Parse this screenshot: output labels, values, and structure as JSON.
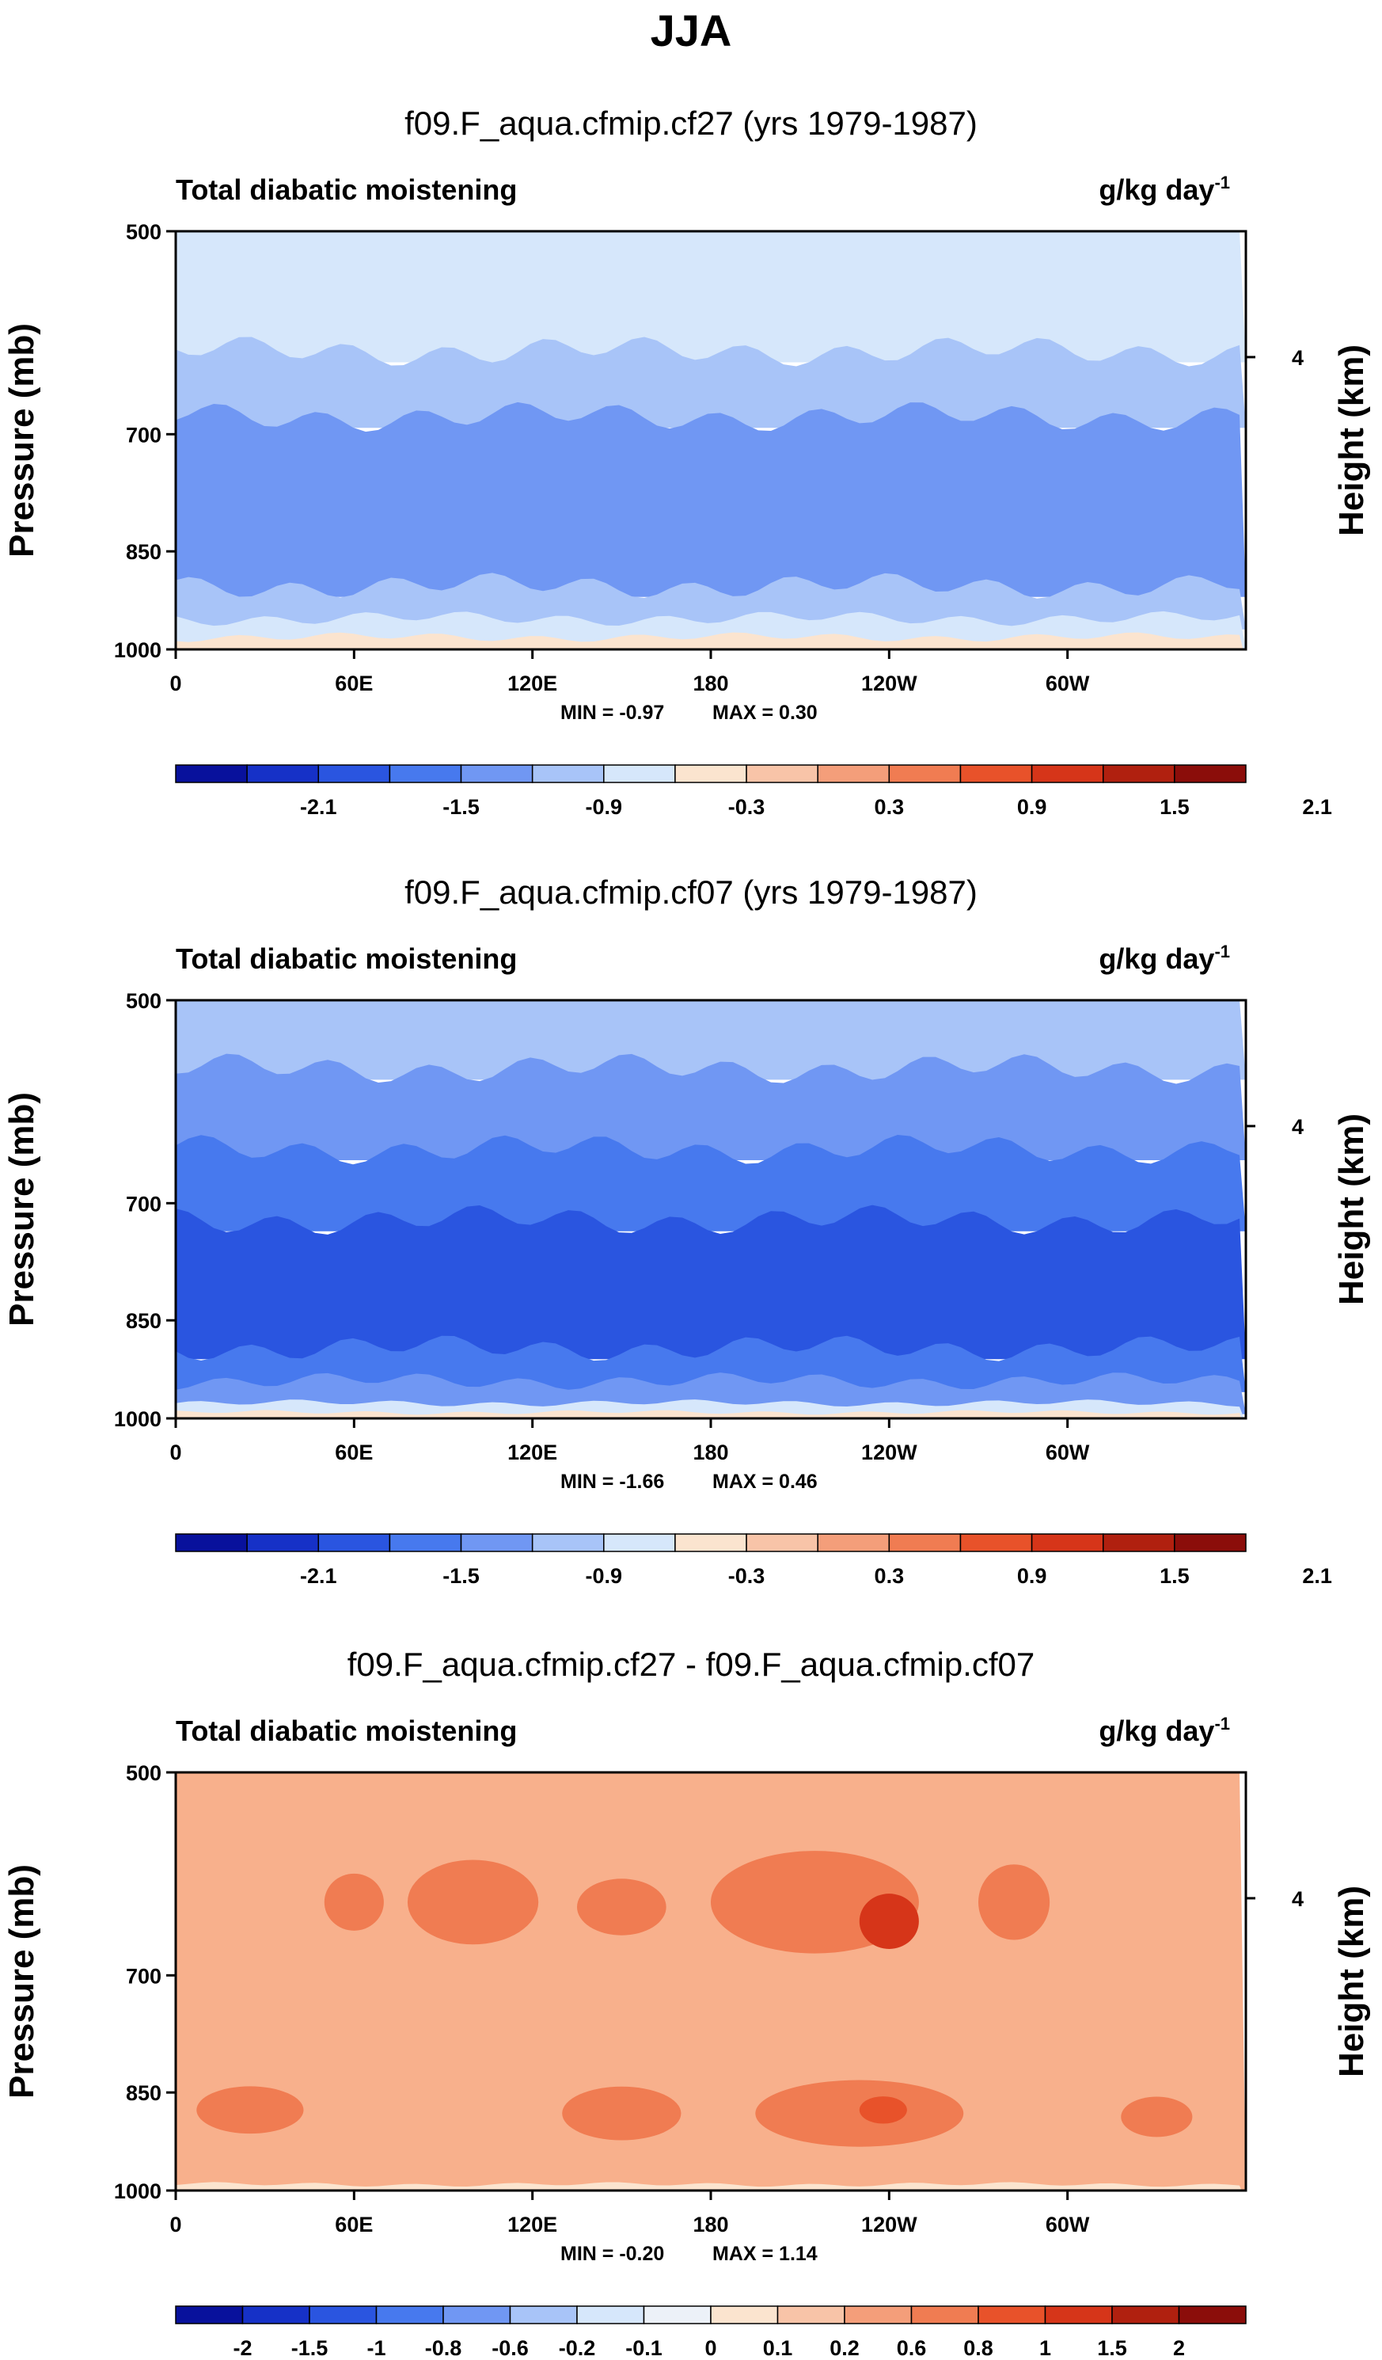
{
  "figure": {
    "title": "JJA"
  },
  "chart_data": [
    {
      "type": "contour",
      "title": "f09.F_aqua.cfmip.cf27 (yrs 1979-1987)",
      "left_string": "Total diabatic moistening",
      "units_base": "g/kg day",
      "units_exp": "-1",
      "ylabel": "Pressure (mb)",
      "ylabel_right": "Height (km)",
      "yticks": [
        "500",
        "700",
        "850",
        "1000"
      ],
      "yticks_right": [
        "4"
      ],
      "xticks": [
        "0",
        "60E",
        "120E",
        "180",
        "120W",
        "60W"
      ],
      "min_text": "MIN =  -0.97",
      "max_text": "MAX =   0.30",
      "min": -0.97,
      "max": 0.3,
      "colorbar_labels": [
        "-2.1",
        "-1.5",
        "-0.9",
        "-0.3",
        "0.3",
        "0.9",
        "1.5",
        "2.1"
      ],
      "colorbar_colors": [
        "#08119c",
        "#1631c7",
        "#2a55e0",
        "#4779ee",
        "#7097f3",
        "#a8c4f8",
        "#d6e7fb",
        "#fbe4cf",
        "#f8c4a8",
        "#f49e7a",
        "#f07c52",
        "#e8522a",
        "#d63519",
        "#b0200f",
        "#8b0d0a"
      ],
      "bands": [
        {
          "p_top": 500,
          "p_bot": 610,
          "color": "#d6e7fb"
        },
        {
          "p_top": 610,
          "p_bot": 680,
          "color": "#a8c4f8"
        },
        {
          "p_top": 680,
          "p_bot": 900,
          "color": "#7097f3"
        },
        {
          "p_top": 900,
          "p_bot": 950,
          "color": "#a8c4f8"
        },
        {
          "p_top": 950,
          "p_bot": 980,
          "color": "#d6e7fb"
        },
        {
          "p_top": 980,
          "p_bot": 1000,
          "color": "#fbe4cf"
        }
      ]
    },
    {
      "type": "contour",
      "title": "f09.F_aqua.cfmip.cf07 (yrs 1979-1987)",
      "left_string": "Total diabatic moistening",
      "units_base": "g/kg day",
      "units_exp": "-1",
      "ylabel": "Pressure (mb)",
      "ylabel_right": "Height (km)",
      "yticks": [
        "500",
        "700",
        "850",
        "1000"
      ],
      "yticks_right": [
        "4"
      ],
      "xticks": [
        "0",
        "60E",
        "120E",
        "180",
        "120W",
        "60W"
      ],
      "min_text": "MIN =  -1.66",
      "max_text": "MAX =   0.46",
      "min": -1.66,
      "max": 0.46,
      "colorbar_labels": [
        "-2.1",
        "-1.5",
        "-0.9",
        "-0.3",
        "0.3",
        "0.9",
        "1.5",
        "2.1"
      ],
      "colorbar_colors": [
        "#08119c",
        "#1631c7",
        "#2a55e0",
        "#4779ee",
        "#7097f3",
        "#a8c4f8",
        "#d6e7fb",
        "#fbe4cf",
        "#f8c4a8",
        "#f49e7a",
        "#f07c52",
        "#e8522a",
        "#d63519",
        "#b0200f",
        "#8b0d0a"
      ],
      "bands": [
        {
          "p_top": 500,
          "p_bot": 560,
          "color": "#a8c4f8"
        },
        {
          "p_top": 560,
          "p_bot": 640,
          "color": "#7097f3"
        },
        {
          "p_top": 640,
          "p_bot": 720,
          "color": "#4779ee"
        },
        {
          "p_top": 720,
          "p_bot": 890,
          "color": "#2a55e0"
        },
        {
          "p_top": 890,
          "p_bot": 940,
          "color": "#4779ee"
        },
        {
          "p_top": 940,
          "p_bot": 975,
          "color": "#7097f3"
        },
        {
          "p_top": 975,
          "p_bot": 990,
          "color": "#d6e7fb"
        },
        {
          "p_top": 990,
          "p_bot": 1000,
          "color": "#fbe4cf"
        }
      ]
    },
    {
      "type": "contour",
      "title": "f09.F_aqua.cfmip.cf27 - f09.F_aqua.cfmip.cf07",
      "left_string": "Total diabatic moistening",
      "units_base": "g/kg day",
      "units_exp": "-1",
      "ylabel": "Pressure (mb)",
      "ylabel_right": "Height (km)",
      "yticks": [
        "500",
        "700",
        "850",
        "1000"
      ],
      "yticks_right": [
        "4"
      ],
      "xticks": [
        "0",
        "60E",
        "120E",
        "180",
        "120W",
        "60W"
      ],
      "min_text": "MIN =  -0.20",
      "max_text": "MAX =   1.14",
      "min": -0.2,
      "max": 1.14,
      "colorbar_labels": [
        "-2",
        "-1.5",
        "-1",
        "-0.8",
        "-0.6",
        "-0.2",
        "-0.1",
        "0",
        "0.1",
        "0.2",
        "0.6",
        "0.8",
        "1",
        "1.5",
        "2"
      ],
      "colorbar_colors": [
        "#08119c",
        "#1631c7",
        "#2a55e0",
        "#4779ee",
        "#7097f3",
        "#a8c4f8",
        "#d6e7fb",
        "#ecf1f8",
        "#fbe4cf",
        "#f8c4a8",
        "#f49e7a",
        "#f07c52",
        "#e8522a",
        "#d63519",
        "#b0200f",
        "#8b0d0a"
      ],
      "bands": [
        {
          "p_top": 500,
          "p_bot": 990,
          "color": "#f8b08c"
        },
        {
          "p_top": 990,
          "p_bot": 1000,
          "color": "#fbe4cf"
        }
      ],
      "blobs": [
        {
          "lon": 100,
          "p": 620,
          "dlon": 22,
          "dp": 45,
          "color": "#f07c52"
        },
        {
          "lon": 215,
          "p": 620,
          "dlon": 35,
          "dp": 55,
          "color": "#f07c52"
        },
        {
          "lon": 240,
          "p": 640,
          "dlon": 10,
          "dp": 30,
          "color": "#d63519"
        },
        {
          "lon": 282,
          "p": 620,
          "dlon": 12,
          "dp": 40,
          "color": "#f07c52"
        },
        {
          "lon": 60,
          "p": 620,
          "dlon": 10,
          "dp": 30,
          "color": "#f07c52"
        },
        {
          "lon": 150,
          "p": 625,
          "dlon": 15,
          "dp": 30,
          "color": "#f07c52"
        },
        {
          "lon": 25,
          "p": 875,
          "dlon": 18,
          "dp": 35,
          "color": "#f07c52"
        },
        {
          "lon": 150,
          "p": 880,
          "dlon": 20,
          "dp": 40,
          "color": "#f07c52"
        },
        {
          "lon": 230,
          "p": 880,
          "dlon": 35,
          "dp": 50,
          "color": "#f07c52"
        },
        {
          "lon": 238,
          "p": 875,
          "dlon": 8,
          "dp": 20,
          "color": "#e8522a"
        },
        {
          "lon": 330,
          "p": 885,
          "dlon": 12,
          "dp": 30,
          "color": "#f07c52"
        }
      ]
    }
  ]
}
